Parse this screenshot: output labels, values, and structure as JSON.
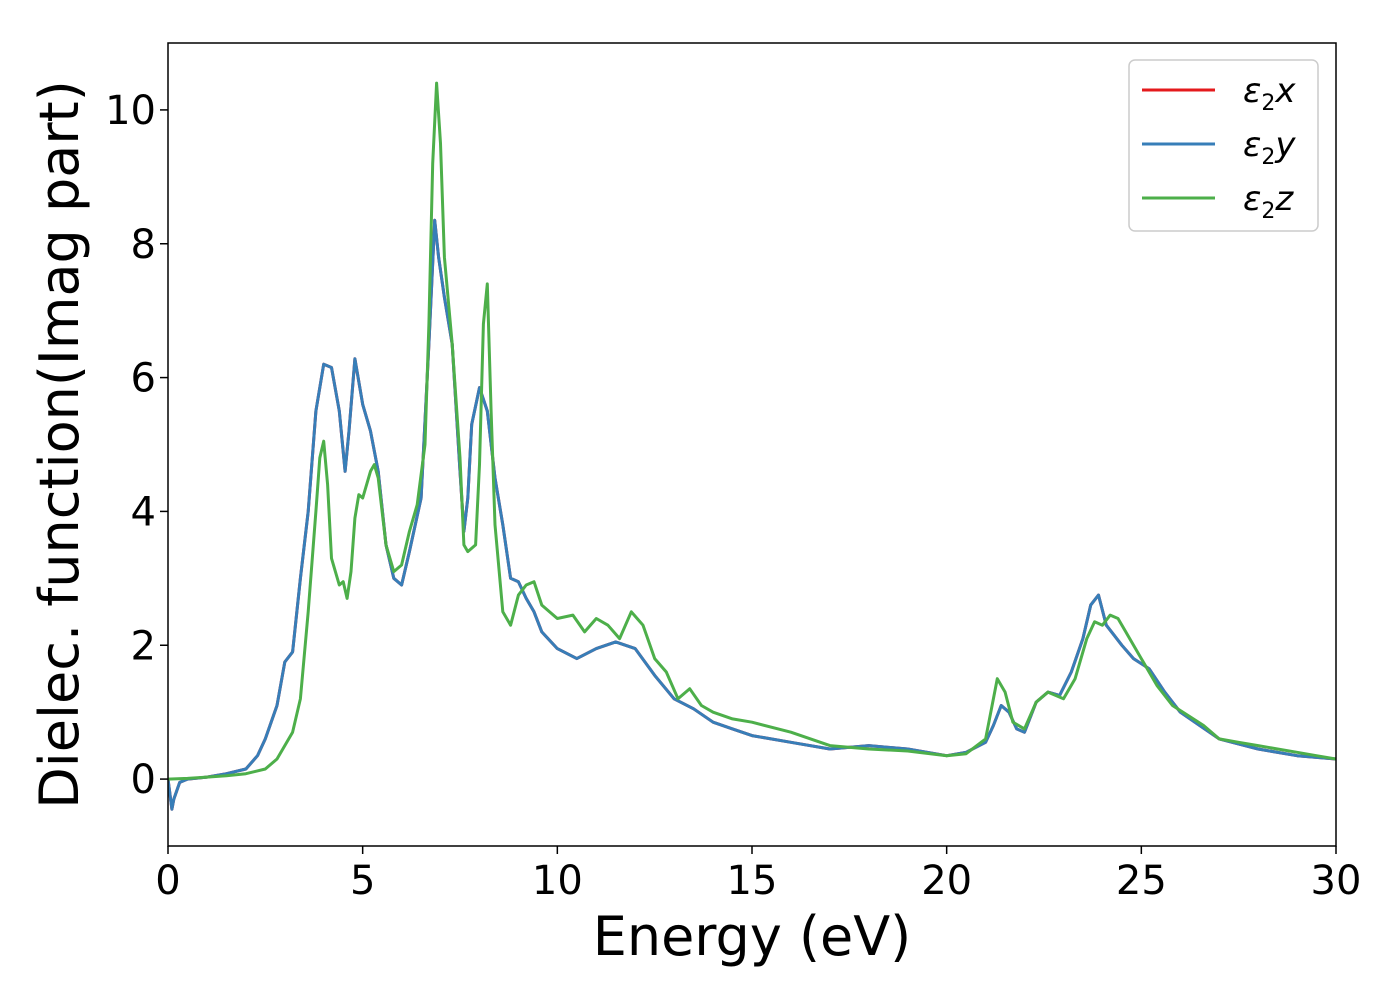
{
  "chart_data": {
    "type": "line",
    "title": "",
    "xlabel": "Energy (eV)",
    "ylabel": "Dielec. function(Imag part)",
    "xlim": [
      0,
      30
    ],
    "ylim": [
      -1,
      11
    ],
    "xticks": [
      0,
      5,
      10,
      15,
      20,
      25,
      30
    ],
    "yticks": [
      0,
      2,
      4,
      6,
      8,
      10
    ],
    "grid": false,
    "legend_position": "top-right",
    "series": [
      {
        "name": "ε₂x",
        "legend_main": "ε",
        "legend_sub": "2",
        "legend_suffix": "x",
        "color": "#e41a1c",
        "x": [
          0,
          0.1,
          0.15,
          0.3,
          0.5,
          1,
          1.5,
          2,
          2.3,
          2.5,
          2.8,
          3,
          3.2,
          3.4,
          3.6,
          3.8,
          4,
          4.2,
          4.4,
          4.55,
          4.65,
          4.8,
          5,
          5.2,
          5.4,
          5.6,
          5.8,
          6,
          6.2,
          6.5,
          6.7,
          6.85,
          6.95,
          7.1,
          7.3,
          7.5,
          7.6,
          7.7,
          7.8,
          8,
          8.2,
          8.4,
          8.6,
          8.8,
          9,
          9.2,
          9.4,
          9.6,
          10,
          10.5,
          11,
          11.5,
          12,
          12.5,
          13,
          13.5,
          14,
          14.5,
          15,
          16,
          17,
          18,
          19,
          20,
          20.5,
          21,
          21.2,
          21.4,
          21.6,
          21.8,
          22,
          22.3,
          22.6,
          22.9,
          23.2,
          23.5,
          23.7,
          23.9,
          24.1,
          24.3,
          24.5,
          24.8,
          25.2,
          25.6,
          26,
          26.5,
          27,
          28,
          29,
          30
        ],
        "y": [
          0,
          -0.45,
          -0.3,
          -0.05,
          0,
          0.03,
          0.08,
          0.15,
          0.35,
          0.6,
          1.1,
          1.75,
          1.9,
          3.0,
          4.0,
          5.5,
          6.2,
          6.15,
          5.5,
          4.6,
          5.2,
          6.28,
          5.6,
          5.2,
          4.6,
          3.5,
          3.0,
          2.9,
          3.4,
          4.2,
          6.5,
          8.35,
          7.8,
          7.2,
          6.5,
          4.6,
          3.7,
          4.2,
          5.3,
          5.85,
          5.5,
          4.5,
          3.8,
          3.0,
          2.95,
          2.7,
          2.5,
          2.2,
          1.95,
          1.8,
          1.95,
          2.05,
          1.95,
          1.55,
          1.2,
          1.05,
          0.85,
          0.75,
          0.65,
          0.55,
          0.45,
          0.5,
          0.45,
          0.35,
          0.4,
          0.55,
          0.8,
          1.1,
          1.0,
          0.75,
          0.7,
          1.15,
          1.3,
          1.25,
          1.6,
          2.1,
          2.6,
          2.75,
          2.3,
          2.15,
          2.0,
          1.8,
          1.65,
          1.3,
          1.0,
          0.8,
          0.6,
          0.45,
          0.35,
          0.3
        ]
      },
      {
        "name": "ε₂y",
        "legend_main": "ε",
        "legend_sub": "2",
        "legend_suffix": "y",
        "color": "#377eb8",
        "x": [
          0,
          0.1,
          0.15,
          0.3,
          0.5,
          1,
          1.5,
          2,
          2.3,
          2.5,
          2.8,
          3,
          3.2,
          3.4,
          3.6,
          3.8,
          4,
          4.2,
          4.4,
          4.55,
          4.65,
          4.8,
          5,
          5.2,
          5.4,
          5.6,
          5.8,
          6,
          6.2,
          6.5,
          6.7,
          6.85,
          6.95,
          7.1,
          7.3,
          7.5,
          7.6,
          7.7,
          7.8,
          8,
          8.2,
          8.4,
          8.6,
          8.8,
          9,
          9.2,
          9.4,
          9.6,
          10,
          10.5,
          11,
          11.5,
          12,
          12.5,
          13,
          13.5,
          14,
          14.5,
          15,
          16,
          17,
          18,
          19,
          20,
          20.5,
          21,
          21.2,
          21.4,
          21.6,
          21.8,
          22,
          22.3,
          22.6,
          22.9,
          23.2,
          23.5,
          23.7,
          23.9,
          24.1,
          24.3,
          24.5,
          24.8,
          25.2,
          25.6,
          26,
          26.5,
          27,
          28,
          29,
          30
        ],
        "y": [
          0,
          -0.45,
          -0.3,
          -0.05,
          0,
          0.03,
          0.08,
          0.15,
          0.35,
          0.6,
          1.1,
          1.75,
          1.9,
          3.0,
          4.0,
          5.5,
          6.2,
          6.15,
          5.5,
          4.6,
          5.2,
          6.28,
          5.6,
          5.2,
          4.6,
          3.5,
          3.0,
          2.9,
          3.4,
          4.2,
          6.5,
          8.35,
          7.8,
          7.2,
          6.5,
          4.6,
          3.7,
          4.2,
          5.3,
          5.85,
          5.5,
          4.5,
          3.8,
          3.0,
          2.95,
          2.7,
          2.5,
          2.2,
          1.95,
          1.8,
          1.95,
          2.05,
          1.95,
          1.55,
          1.2,
          1.05,
          0.85,
          0.75,
          0.65,
          0.55,
          0.45,
          0.5,
          0.45,
          0.35,
          0.4,
          0.55,
          0.8,
          1.1,
          1.0,
          0.75,
          0.7,
          1.15,
          1.3,
          1.25,
          1.6,
          2.1,
          2.6,
          2.75,
          2.3,
          2.15,
          2.0,
          1.8,
          1.65,
          1.3,
          1.0,
          0.8,
          0.6,
          0.45,
          0.35,
          0.3
        ]
      },
      {
        "name": "ε₂z",
        "legend_main": "ε",
        "legend_sub": "2",
        "legend_suffix": "z",
        "color": "#4daf4a",
        "x": [
          0,
          0.5,
          1,
          1.5,
          2,
          2.5,
          2.8,
          3,
          3.2,
          3.4,
          3.6,
          3.8,
          3.9,
          4,
          4.1,
          4.2,
          4.4,
          4.5,
          4.6,
          4.7,
          4.8,
          4.9,
          5,
          5.2,
          5.3,
          5.4,
          5.6,
          5.8,
          6,
          6.2,
          6.4,
          6.6,
          6.7,
          6.8,
          6.9,
          7.0,
          7.1,
          7.3,
          7.5,
          7.6,
          7.7,
          7.9,
          8.0,
          8.1,
          8.2,
          8.3,
          8.4,
          8.6,
          8.8,
          9,
          9.2,
          9.4,
          9.6,
          10,
          10.4,
          10.7,
          11,
          11.3,
          11.6,
          11.9,
          12.2,
          12.5,
          12.8,
          13.1,
          13.4,
          13.7,
          14,
          14.5,
          15,
          16,
          17,
          18,
          19,
          20,
          20.5,
          21,
          21.1,
          21.3,
          21.5,
          21.7,
          22,
          22.3,
          22.6,
          23,
          23.3,
          23.6,
          23.8,
          24.0,
          24.2,
          24.4,
          24.6,
          25,
          25.4,
          25.8,
          26.2,
          26.6,
          27,
          27.5,
          28,
          28.5,
          29,
          29.5,
          30
        ],
        "y": [
          0,
          0.01,
          0.03,
          0.05,
          0.08,
          0.15,
          0.3,
          0.5,
          0.7,
          1.2,
          2.5,
          4.0,
          4.8,
          5.05,
          4.4,
          3.3,
          2.9,
          2.95,
          2.7,
          3.1,
          3.9,
          4.25,
          4.2,
          4.6,
          4.7,
          4.5,
          3.5,
          3.1,
          3.2,
          3.7,
          4.1,
          5.0,
          6.8,
          9.2,
          10.4,
          9.5,
          7.8,
          6.5,
          4.8,
          3.5,
          3.4,
          3.5,
          4.7,
          6.8,
          7.4,
          5.5,
          3.8,
          2.5,
          2.3,
          2.75,
          2.9,
          2.95,
          2.6,
          2.4,
          2.45,
          2.2,
          2.4,
          2.3,
          2.1,
          2.5,
          2.3,
          1.8,
          1.6,
          1.2,
          1.35,
          1.1,
          1.0,
          0.9,
          0.85,
          0.7,
          0.5,
          0.45,
          0.42,
          0.35,
          0.38,
          0.6,
          0.9,
          1.5,
          1.3,
          0.85,
          0.75,
          1.15,
          1.3,
          1.2,
          1.5,
          2.1,
          2.35,
          2.3,
          2.45,
          2.4,
          2.2,
          1.8,
          1.4,
          1.1,
          0.95,
          0.8,
          0.6,
          0.55,
          0.5,
          0.45,
          0.4,
          0.35,
          0.3
        ]
      }
    ]
  }
}
